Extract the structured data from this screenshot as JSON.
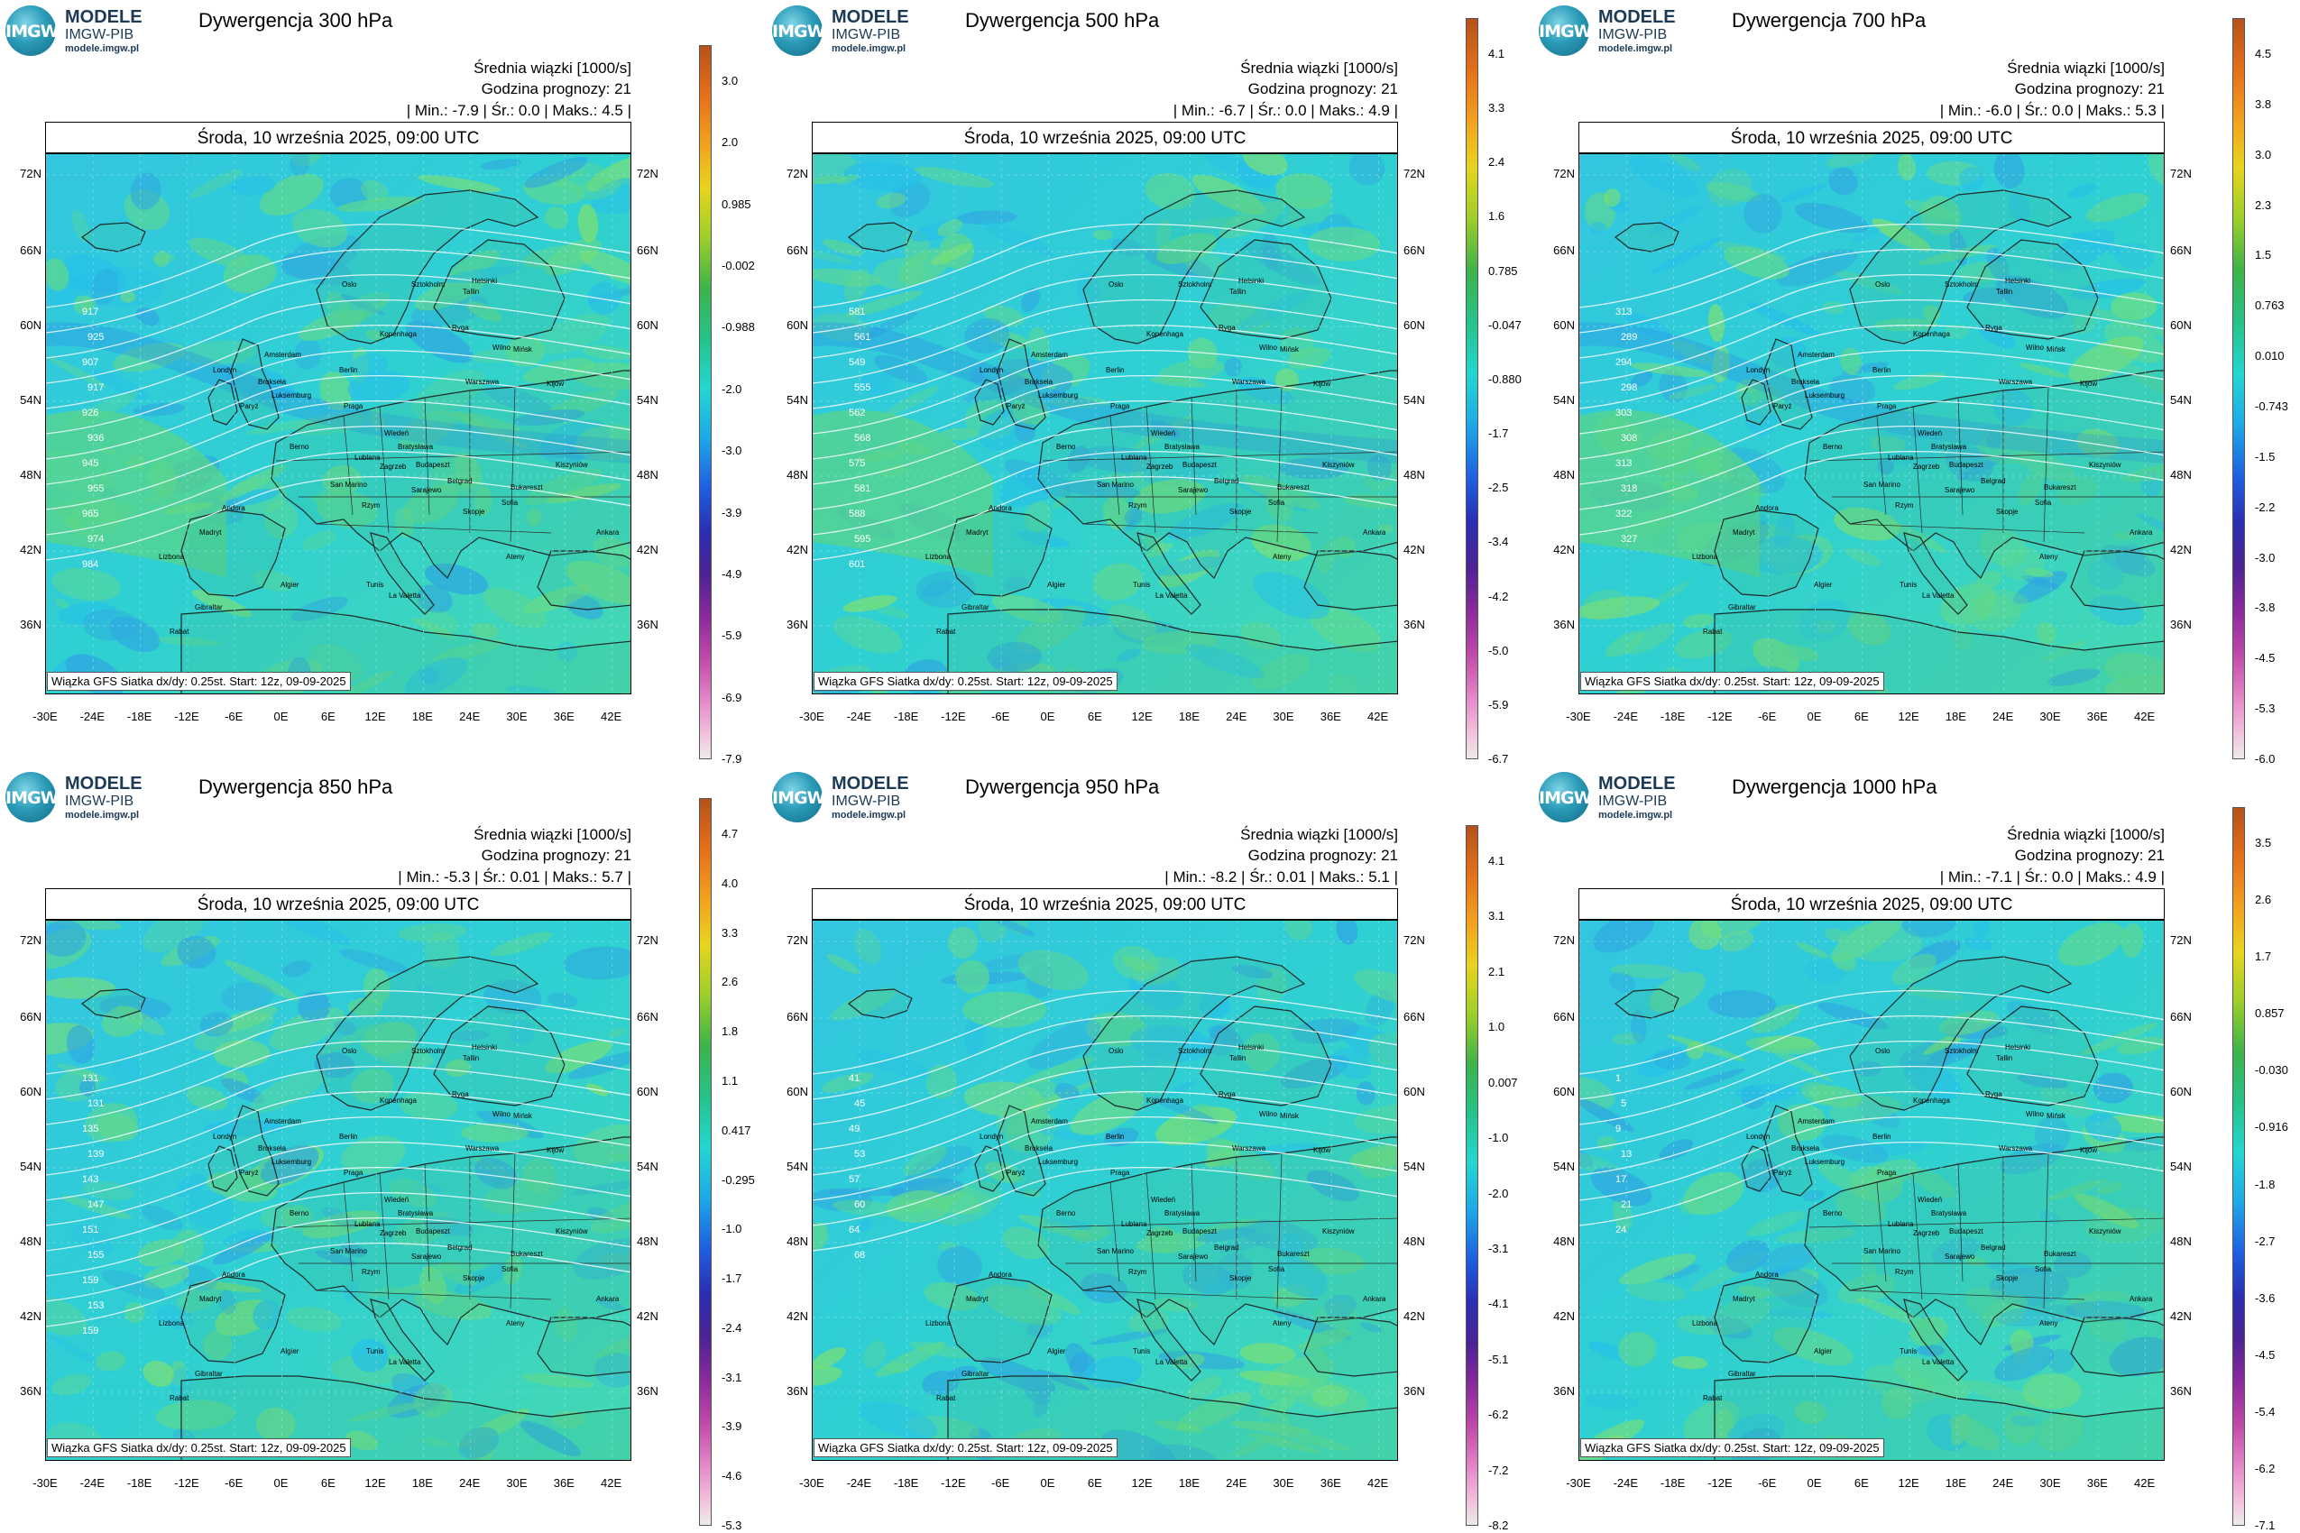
{
  "logo": {
    "line1": "MODELE",
    "line2": "IMGW-PIB",
    "url": "modele.imgw.pl",
    "mark": "IMGW"
  },
  "common": {
    "subtitle1": "Średnia wiązki [1000/s]",
    "subtitle2": "Godzina prognozy: 21",
    "date": "Środa, 10 września 2025, 09:00 UTC",
    "credit": "Wiązka GFS Siatka dx/dy: 0.25st. Start: 12z, 09-09-2025",
    "min_label": "Min.:",
    "avg_label": "Śr.:",
    "max_label": "Maks.:",
    "lat_left": [
      "72N",
      "66N",
      "60N",
      "54N",
      "48N",
      "42N",
      "36N"
    ],
    "lat_right": [
      "72N",
      "66N",
      "60N",
      "54N",
      "48N",
      "42N",
      "36N"
    ],
    "lon_labels": [
      "-30E",
      "-24E",
      "-18E",
      "-12E",
      "-6E",
      "0E",
      "6E",
      "12E",
      "18E",
      "24E",
      "30E",
      "36E",
      "42E"
    ],
    "cities": [
      "Oslo",
      "Sztokholm",
      "Helsinki",
      "Tallin",
      "Ryga",
      "Kopenhaga",
      "Wilno",
      "Mińsk",
      "Amsterdam",
      "Londyn",
      "Berlin",
      "Warszawa",
      "Bruksela",
      "Luksemburg",
      "Paryż",
      "Praga",
      "Kijów",
      "Wiedeń",
      "Bratysława",
      "Berno",
      "Lublana",
      "Budapeszt",
      "Zagrzeb",
      "Kiszyniów",
      "Belgrad",
      "San Marino",
      "Sarajewo",
      "Bukareszt",
      "Rzym",
      "Skopje",
      "Sofia",
      "Andora",
      "Madryt",
      "Ateny",
      "Ankara",
      "Lizbona",
      "Tunis",
      "Algier",
      "La Valetta",
      "Gibraltar",
      "Rabat",
      "Nikozja"
    ]
  },
  "panels": [
    {
      "title": "Dywergencja 300 hPa",
      "min": "-7.9",
      "avg": "0.0",
      "max": "4.5",
      "colorbar": [
        "3.0",
        "2.0",
        "0.985",
        "-0.002",
        "-0.988",
        "-2.0",
        "-3.0",
        "-3.9",
        "-4.9",
        "-5.9",
        "-6.9",
        "-7.9"
      ],
      "contours": [
        "917",
        "925",
        "907",
        "917",
        "926",
        "936",
        "945",
        "955",
        "965",
        "974",
        "984"
      ]
    },
    {
      "title": "Dywergencja 500 hPa",
      "min": "-6.7",
      "avg": "0.0",
      "max": "4.9",
      "colorbar": [
        "4.1",
        "3.3",
        "2.4",
        "1.6",
        "0.785",
        "-0.047",
        "-0.880",
        "-1.7",
        "-2.5",
        "-3.4",
        "-4.2",
        "-5.0",
        "-5.9",
        "-6.7"
      ],
      "contours": [
        "581",
        "561",
        "549",
        "555",
        "562",
        "568",
        "575",
        "581",
        "588",
        "595",
        "601"
      ]
    },
    {
      "title": "Dywergencja 700 hPa",
      "min": "-6.0",
      "avg": "0.0",
      "max": "5.3",
      "colorbar": [
        "4.5",
        "3.8",
        "3.0",
        "2.3",
        "1.5",
        "0.763",
        "0.010",
        "-0.743",
        "-1.5",
        "-2.2",
        "-3.0",
        "-3.8",
        "-4.5",
        "-5.3",
        "-6.0"
      ],
      "contours": [
        "313",
        "289",
        "294",
        "298",
        "303",
        "308",
        "313",
        "318",
        "322",
        "327"
      ]
    },
    {
      "title": "Dywergencja 850 hPa",
      "min": "-5.3",
      "avg": "0.01",
      "max": "5.7",
      "colorbar": [
        "4.7",
        "4.0",
        "3.3",
        "2.6",
        "1.8",
        "1.1",
        "0.417",
        "-0.295",
        "-1.0",
        "-1.7",
        "-2.4",
        "-3.1",
        "-3.9",
        "-4.6",
        "-5.3"
      ],
      "contours": [
        "131",
        "131",
        "135",
        "139",
        "143",
        "147",
        "151",
        "155",
        "159",
        "153",
        "159"
      ]
    },
    {
      "title": "Dywergencja 950 hPa",
      "min": "-8.2",
      "avg": "0.01",
      "max": "5.1",
      "colorbar": [
        "4.1",
        "3.1",
        "2.1",
        "1.0",
        "0.007",
        "-1.0",
        "-2.0",
        "-3.1",
        "-4.1",
        "-5.1",
        "-6.2",
        "-7.2",
        "-8.2"
      ],
      "contours": [
        "41",
        "45",
        "49",
        "53",
        "57",
        "60",
        "64",
        "68"
      ]
    },
    {
      "title": "Dywergencja 1000 hPa",
      "min": "-7.1",
      "avg": "0.0",
      "max": "4.9",
      "colorbar": [
        "3.5",
        "2.6",
        "1.7",
        "0.857",
        "-0.030",
        "-0.916",
        "-1.8",
        "-2.7",
        "-3.6",
        "-4.5",
        "-5.4",
        "-6.2",
        "-7.1"
      ],
      "contours": [
        "1",
        "5",
        "9",
        "13",
        "17",
        "21",
        "24"
      ]
    }
  ]
}
